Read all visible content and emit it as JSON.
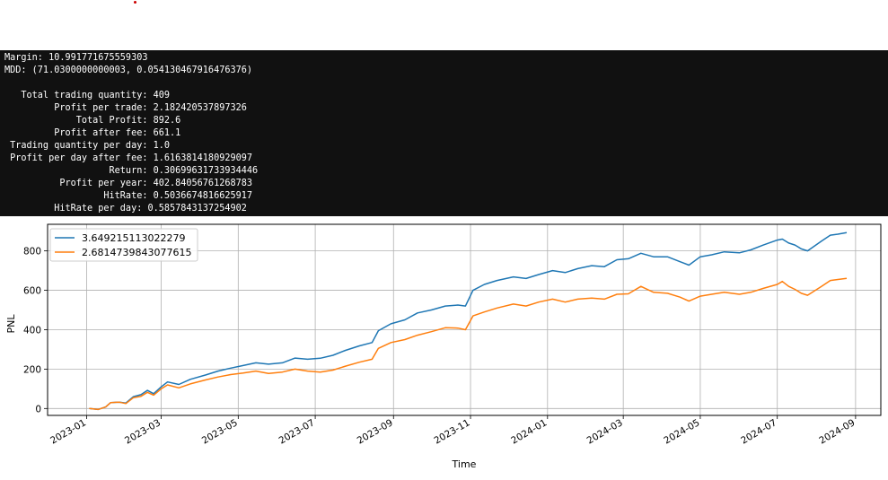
{
  "colors": {
    "output_bg": "#111111",
    "output_text": "#ffffff",
    "series_1": "#1f77b4",
    "series_2": "#ff7f0e",
    "grid": "#b0b0b0"
  },
  "output": {
    "lines": [
      "Margin: 10.991771675559303",
      "MDD: (71.0300000000003, 0.054130467916476376)",
      "",
      "   Total trading quantity: 409",
      "         Profit per trade: 2.182420537897326",
      "             Total Profit: 892.6",
      "         Profit after fee: 661.1",
      " Trading quantity per day: 1.0",
      " Profit per day after fee: 1.6163814180929097",
      "                   Return: 0.30699631733934446",
      "          Profit per year: 402.84056761268783",
      "                  HitRate: 0.5036674816625917",
      "         HitRate per day: 0.5857843137254902"
    ]
  },
  "chart_data": {
    "type": "line",
    "title": "",
    "xlabel": "Time",
    "ylabel": "PNL",
    "x_ticks": [
      "2023-01",
      "2023-03",
      "2023-05",
      "2023-07",
      "2023-09",
      "2023-11",
      "2024-01",
      "2024-03",
      "2024-05",
      "2024-07",
      "2024-09"
    ],
    "y_ticks": [
      0,
      200,
      400,
      600,
      800
    ],
    "ylim": [
      -35,
      935
    ],
    "xlim": [
      "2022-12-01",
      "2024-09-21"
    ],
    "grid": true,
    "legend_position": "top-left",
    "series": [
      {
        "name": "3.649215113022279",
        "color": "#1f77b4",
        "points": [
          [
            "2023-01-03",
            0
          ],
          [
            "2023-01-10",
            -5
          ],
          [
            "2023-01-16",
            8
          ],
          [
            "2023-01-20",
            30
          ],
          [
            "2023-01-27",
            32
          ],
          [
            "2023-02-01",
            28
          ],
          [
            "2023-02-07",
            60
          ],
          [
            "2023-02-13",
            70
          ],
          [
            "2023-02-18",
            92
          ],
          [
            "2023-02-23",
            75
          ],
          [
            "2023-03-01",
            110
          ],
          [
            "2023-03-06",
            135
          ],
          [
            "2023-03-15",
            122
          ],
          [
            "2023-03-24",
            148
          ],
          [
            "2023-04-05",
            170
          ],
          [
            "2023-04-15",
            190
          ],
          [
            "2023-04-25",
            205
          ],
          [
            "2023-05-05",
            218
          ],
          [
            "2023-05-15",
            232
          ],
          [
            "2023-05-25",
            225
          ],
          [
            "2023-06-05",
            232
          ],
          [
            "2023-06-15",
            256
          ],
          [
            "2023-06-25",
            250
          ],
          [
            "2023-07-05",
            255
          ],
          [
            "2023-07-15",
            270
          ],
          [
            "2023-07-25",
            295
          ],
          [
            "2023-08-05",
            318
          ],
          [
            "2023-08-15",
            335
          ],
          [
            "2023-08-20",
            395
          ],
          [
            "2023-08-30",
            430
          ],
          [
            "2023-09-10",
            450
          ],
          [
            "2023-09-20",
            485
          ],
          [
            "2023-10-01",
            500
          ],
          [
            "2023-10-12",
            520
          ],
          [
            "2023-10-22",
            525
          ],
          [
            "2023-10-28",
            520
          ],
          [
            "2023-11-03",
            600
          ],
          [
            "2023-11-12",
            630
          ],
          [
            "2023-11-22",
            650
          ],
          [
            "2023-12-05",
            668
          ],
          [
            "2023-12-15",
            660
          ],
          [
            "2023-12-25",
            680
          ],
          [
            "2024-01-05",
            700
          ],
          [
            "2024-01-15",
            690
          ],
          [
            "2024-01-25",
            710
          ],
          [
            "2024-02-05",
            725
          ],
          [
            "2024-02-15",
            720
          ],
          [
            "2024-02-25",
            755
          ],
          [
            "2024-03-05",
            760
          ],
          [
            "2024-03-15",
            788
          ],
          [
            "2024-03-25",
            770
          ],
          [
            "2024-04-05",
            770
          ],
          [
            "2024-04-15",
            745
          ],
          [
            "2024-04-22",
            728
          ],
          [
            "2024-05-01",
            770
          ],
          [
            "2024-05-10",
            780
          ],
          [
            "2024-05-20",
            795
          ],
          [
            "2024-06-01",
            790
          ],
          [
            "2024-06-10",
            805
          ],
          [
            "2024-06-20",
            830
          ],
          [
            "2024-07-01",
            855
          ],
          [
            "2024-07-05",
            860
          ],
          [
            "2024-07-10",
            840
          ],
          [
            "2024-07-15",
            830
          ],
          [
            "2024-07-20",
            810
          ],
          [
            "2024-07-25",
            800
          ],
          [
            "2024-08-05",
            850
          ],
          [
            "2024-08-12",
            880
          ],
          [
            "2024-08-18",
            885
          ],
          [
            "2024-08-25",
            893
          ]
        ]
      },
      {
        "name": "2.6814739843077615",
        "color": "#ff7f0e",
        "points": [
          [
            "2023-01-03",
            0
          ],
          [
            "2023-01-10",
            -5
          ],
          [
            "2023-01-16",
            8
          ],
          [
            "2023-01-20",
            30
          ],
          [
            "2023-01-27",
            32
          ],
          [
            "2023-02-01",
            25
          ],
          [
            "2023-02-07",
            55
          ],
          [
            "2023-02-13",
            62
          ],
          [
            "2023-02-18",
            82
          ],
          [
            "2023-02-23",
            68
          ],
          [
            "2023-03-01",
            100
          ],
          [
            "2023-03-06",
            120
          ],
          [
            "2023-03-15",
            105
          ],
          [
            "2023-03-24",
            125
          ],
          [
            "2023-04-05",
            145
          ],
          [
            "2023-04-15",
            160
          ],
          [
            "2023-04-25",
            172
          ],
          [
            "2023-05-05",
            180
          ],
          [
            "2023-05-15",
            190
          ],
          [
            "2023-05-25",
            178
          ],
          [
            "2023-06-05",
            185
          ],
          [
            "2023-06-15",
            200
          ],
          [
            "2023-06-25",
            190
          ],
          [
            "2023-07-05",
            185
          ],
          [
            "2023-07-15",
            195
          ],
          [
            "2023-07-25",
            215
          ],
          [
            "2023-08-05",
            235
          ],
          [
            "2023-08-15",
            250
          ],
          [
            "2023-08-20",
            305
          ],
          [
            "2023-08-30",
            335
          ],
          [
            "2023-09-10",
            350
          ],
          [
            "2023-09-20",
            372
          ],
          [
            "2023-10-01",
            390
          ],
          [
            "2023-10-12",
            410
          ],
          [
            "2023-10-22",
            408
          ],
          [
            "2023-10-28",
            400
          ],
          [
            "2023-11-03",
            470
          ],
          [
            "2023-11-12",
            490
          ],
          [
            "2023-11-22",
            510
          ],
          [
            "2023-12-05",
            530
          ],
          [
            "2023-12-15",
            520
          ],
          [
            "2023-12-25",
            540
          ],
          [
            "2024-01-05",
            555
          ],
          [
            "2024-01-15",
            540
          ],
          [
            "2024-01-25",
            555
          ],
          [
            "2024-02-05",
            560
          ],
          [
            "2024-02-15",
            555
          ],
          [
            "2024-02-25",
            580
          ],
          [
            "2024-03-05",
            582
          ],
          [
            "2024-03-15",
            620
          ],
          [
            "2024-03-25",
            590
          ],
          [
            "2024-04-05",
            585
          ],
          [
            "2024-04-15",
            565
          ],
          [
            "2024-04-22",
            545
          ],
          [
            "2024-05-01",
            570
          ],
          [
            "2024-05-10",
            580
          ],
          [
            "2024-05-20",
            590
          ],
          [
            "2024-06-01",
            580
          ],
          [
            "2024-06-10",
            590
          ],
          [
            "2024-06-20",
            610
          ],
          [
            "2024-07-01",
            630
          ],
          [
            "2024-07-05",
            645
          ],
          [
            "2024-07-10",
            620
          ],
          [
            "2024-07-15",
            605
          ],
          [
            "2024-07-20",
            585
          ],
          [
            "2024-07-25",
            575
          ],
          [
            "2024-08-05",
            620
          ],
          [
            "2024-08-12",
            650
          ],
          [
            "2024-08-18",
            655
          ],
          [
            "2024-08-25",
            661
          ]
        ]
      }
    ]
  }
}
